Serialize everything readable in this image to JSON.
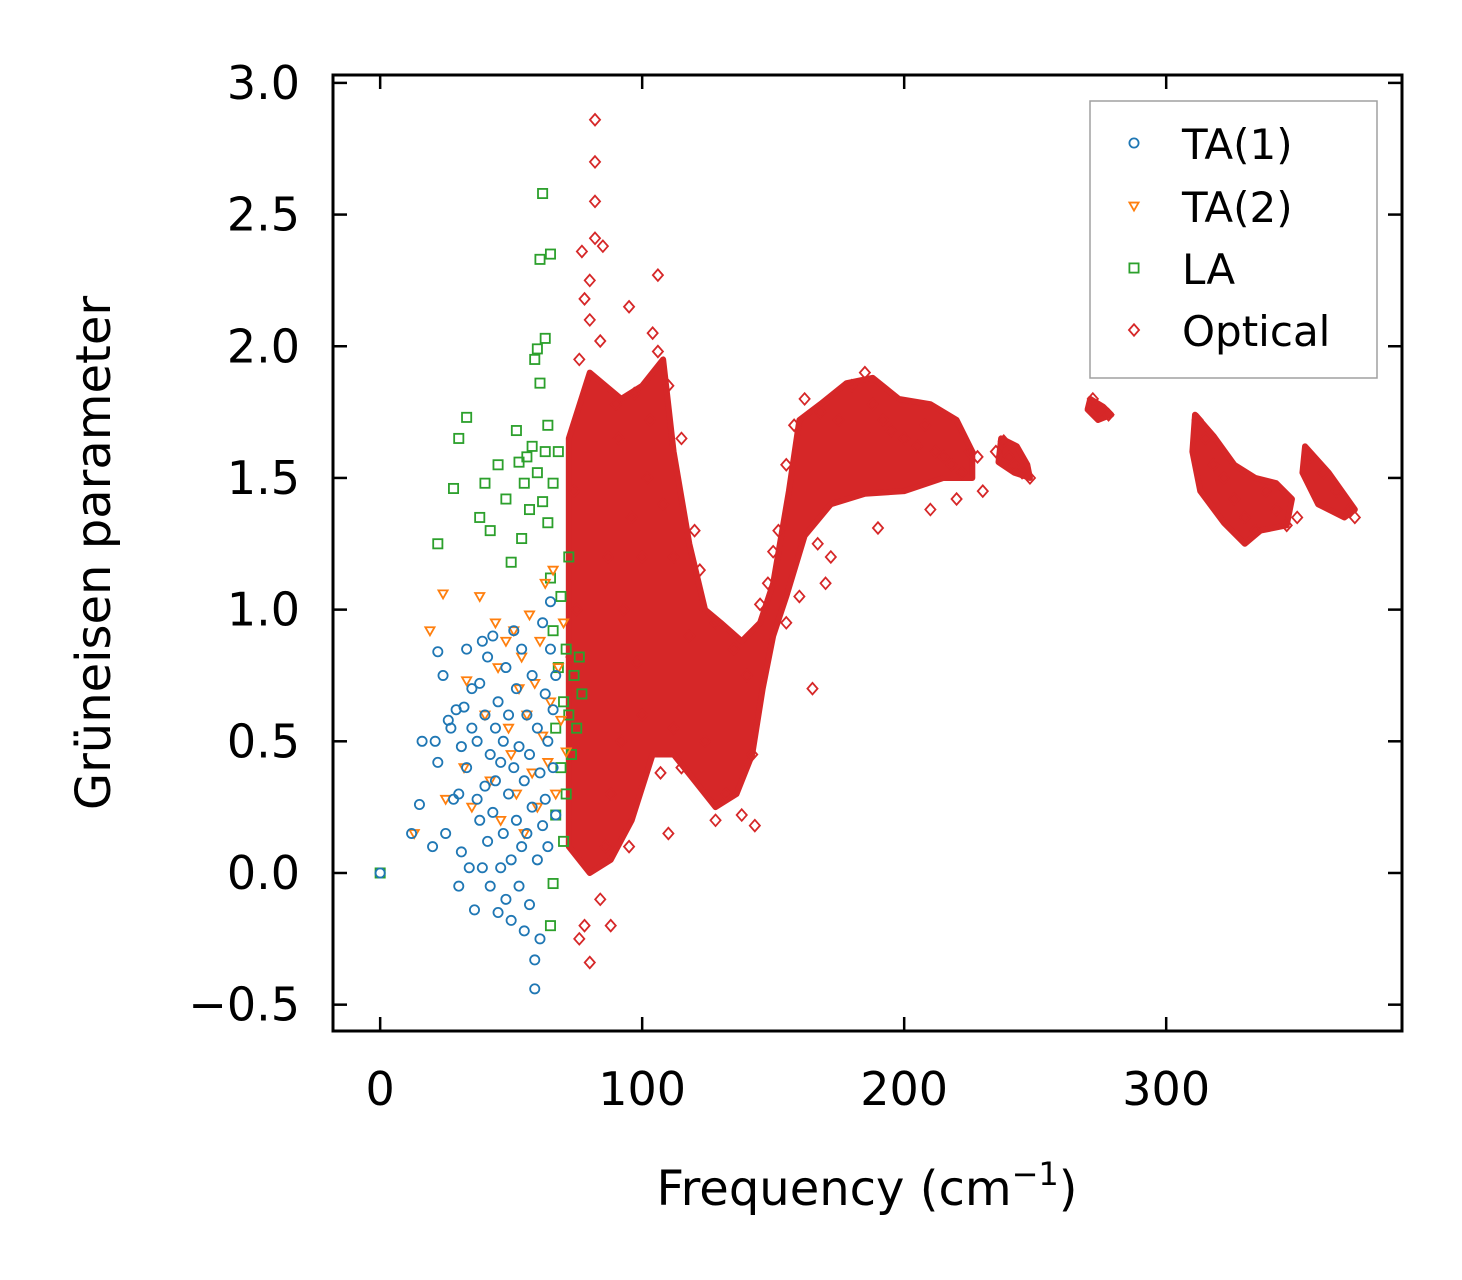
{
  "chart_data": {
    "type": "scatter",
    "title": "",
    "xlabel": "Frequency (cm",
    "xlabel_superscript": "−1",
    "xlabel_suffix": ")",
    "ylabel": "Grüneisen parameter",
    "xlim": [
      -18,
      390
    ],
    "ylim": [
      -0.6,
      3.03
    ],
    "x_ticks": [
      0,
      100,
      200,
      300
    ],
    "x_tick_labels": [
      "0",
      "100",
      "200",
      "300"
    ],
    "y_ticks": [
      -0.5,
      0.0,
      0.5,
      1.0,
      1.5,
      2.0,
      2.5,
      3.0
    ],
    "y_tick_labels": [
      "−0.5",
      "0.0",
      "0.5",
      "1.0",
      "1.5",
      "2.0",
      "2.5",
      "3.0"
    ],
    "grid": false,
    "legend_position": "top-right",
    "series": [
      {
        "name": "TA(1)",
        "marker": "circle",
        "color": "#1f77b4",
        "points": [
          [
            0,
            0
          ],
          [
            12,
            0.15
          ],
          [
            15,
            0.26
          ],
          [
            16,
            0.5
          ],
          [
            20,
            0.1
          ],
          [
            21,
            0.5
          ],
          [
            22,
            0.42
          ],
          [
            22,
            0.84
          ],
          [
            24,
            0.75
          ],
          [
            25,
            0.15
          ],
          [
            26,
            0.58
          ],
          [
            27,
            0.55
          ],
          [
            28,
            0.28
          ],
          [
            29,
            0.62
          ],
          [
            30,
            0.3
          ],
          [
            30,
            -0.05
          ],
          [
            31,
            0.48
          ],
          [
            31,
            0.08
          ],
          [
            32,
            0.63
          ],
          [
            33,
            0.4
          ],
          [
            33,
            0.85
          ],
          [
            34,
            0.02
          ],
          [
            35,
            0.7
          ],
          [
            35,
            0.55
          ],
          [
            36,
            -0.14
          ],
          [
            37,
            0.28
          ],
          [
            37,
            0.5
          ],
          [
            38,
            0.2
          ],
          [
            38,
            0.72
          ],
          [
            39,
            0.02
          ],
          [
            39,
            0.88
          ],
          [
            40,
            0.6
          ],
          [
            40,
            0.33
          ],
          [
            41,
            0.12
          ],
          [
            41,
            0.82
          ],
          [
            42,
            0.45
          ],
          [
            42,
            -0.05
          ],
          [
            43,
            0.23
          ],
          [
            43,
            0.9
          ],
          [
            44,
            0.35
          ],
          [
            44,
            0.55
          ],
          [
            45,
            -0.15
          ],
          [
            45,
            0.65
          ],
          [
            46,
            0.02
          ],
          [
            46,
            0.42
          ],
          [
            47,
            0.15
          ],
          [
            47,
            0.5
          ],
          [
            48,
            0.78
          ],
          [
            48,
            -0.1
          ],
          [
            49,
            0.3
          ],
          [
            49,
            0.6
          ],
          [
            50,
            0.05
          ],
          [
            50,
            -0.18
          ],
          [
            51,
            0.92
          ],
          [
            51,
            0.4
          ],
          [
            52,
            0.2
          ],
          [
            52,
            0.7
          ],
          [
            53,
            -0.05
          ],
          [
            53,
            0.48
          ],
          [
            54,
            0.1
          ],
          [
            54,
            0.85
          ],
          [
            55,
            -0.22
          ],
          [
            55,
            0.35
          ],
          [
            56,
            0.6
          ],
          [
            56,
            0.15
          ],
          [
            57,
            0.45
          ],
          [
            57,
            -0.12
          ],
          [
            58,
            0.25
          ],
          [
            58,
            0.75
          ],
          [
            59,
            -0.33
          ],
          [
            59,
            -0.44
          ],
          [
            60,
            0.05
          ],
          [
            60,
            0.55
          ],
          [
            61,
            0.38
          ],
          [
            61,
            -0.25
          ],
          [
            62,
            0.95
          ],
          [
            62,
            0.18
          ],
          [
            63,
            0.68
          ],
          [
            63,
            0.28
          ],
          [
            64,
            0.1
          ],
          [
            64,
            0.5
          ],
          [
            65,
            1.03
          ],
          [
            65,
            0.85
          ],
          [
            66,
            0.62
          ],
          [
            66,
            0.4
          ],
          [
            67,
            0.22
          ],
          [
            67,
            0.75
          ]
        ]
      },
      {
        "name": "TA(2)",
        "marker": "triangle-down",
        "color": "#ff7f0e",
        "points": [
          [
            13,
            0.15
          ],
          [
            19,
            0.92
          ],
          [
            24,
            1.06
          ],
          [
            25,
            0.28
          ],
          [
            32,
            0.4
          ],
          [
            33,
            0.73
          ],
          [
            35,
            0.25
          ],
          [
            38,
            1.05
          ],
          [
            40,
            0.6
          ],
          [
            42,
            0.35
          ],
          [
            44,
            0.95
          ],
          [
            45,
            0.78
          ],
          [
            46,
            0.2
          ],
          [
            48,
            0.88
          ],
          [
            49,
            0.55
          ],
          [
            50,
            0.45
          ],
          [
            51,
            0.92
          ],
          [
            52,
            0.3
          ],
          [
            53,
            0.7
          ],
          [
            54,
            0.82
          ],
          [
            55,
            0.15
          ],
          [
            56,
            0.6
          ],
          [
            57,
            0.98
          ],
          [
            58,
            0.38
          ],
          [
            59,
            0.72
          ],
          [
            60,
            0.25
          ],
          [
            61,
            0.88
          ],
          [
            62,
            0.52
          ],
          [
            63,
            1.1
          ],
          [
            64,
            0.42
          ],
          [
            65,
            0.65
          ],
          [
            66,
            1.15
          ],
          [
            67,
            0.3
          ],
          [
            68,
            0.78
          ],
          [
            69,
            0.58
          ],
          [
            70,
            0.95
          ],
          [
            71,
            0.46
          ]
        ]
      },
      {
        "name": "LA",
        "marker": "square",
        "color": "#2ca02c",
        "points": [
          [
            0,
            0
          ],
          [
            22,
            1.25
          ],
          [
            28,
            1.46
          ],
          [
            30,
            1.65
          ],
          [
            33,
            1.73
          ],
          [
            38,
            1.35
          ],
          [
            40,
            1.48
          ],
          [
            42,
            1.3
          ],
          [
            45,
            1.55
          ],
          [
            48,
            1.42
          ],
          [
            50,
            1.18
          ],
          [
            52,
            1.68
          ],
          [
            53,
            1.56
          ],
          [
            54,
            1.27
          ],
          [
            55,
            1.48
          ],
          [
            56,
            1.58
          ],
          [
            57,
            1.38
          ],
          [
            58,
            1.62
          ],
          [
            59,
            1.95
          ],
          [
            60,
            1.99
          ],
          [
            60,
            1.52
          ],
          [
            61,
            2.33
          ],
          [
            61,
            1.86
          ],
          [
            62,
            2.58
          ],
          [
            62,
            1.41
          ],
          [
            63,
            1.6
          ],
          [
            63,
            2.03
          ],
          [
            64,
            1.7
          ],
          [
            64,
            1.33
          ],
          [
            65,
            2.35
          ],
          [
            65,
            1.12
          ],
          [
            66,
            0.92
          ],
          [
            66,
            1.48
          ],
          [
            67,
            0.55
          ],
          [
            67,
            0.22
          ],
          [
            68,
            1.6
          ],
          [
            68,
            0.78
          ],
          [
            69,
            0.4
          ],
          [
            69,
            1.05
          ],
          [
            70,
            0.65
          ],
          [
            70,
            0.12
          ],
          [
            71,
            0.85
          ],
          [
            71,
            0.3
          ],
          [
            72,
            0.6
          ],
          [
            72,
            1.2
          ],
          [
            73,
            0.45
          ],
          [
            74,
            0.75
          ],
          [
            75,
            0.55
          ],
          [
            76,
            0.82
          ],
          [
            77,
            0.68
          ],
          [
            65,
            -0.2
          ],
          [
            66,
            -0.04
          ]
        ]
      },
      {
        "name": "Optical",
        "marker": "diamond",
        "color": "#d62728",
        "points": [
          [
            82,
            2.86
          ],
          [
            82,
            2.7
          ],
          [
            82,
            2.55
          ],
          [
            82,
            2.41
          ],
          [
            85,
            2.38
          ],
          [
            80,
            2.25
          ],
          [
            78,
            2.18
          ],
          [
            77,
            2.36
          ],
          [
            80,
            2.1
          ],
          [
            76,
            1.95
          ],
          [
            84,
            2.02
          ],
          [
            95,
            2.15
          ],
          [
            106,
            2.27
          ],
          [
            104,
            2.05
          ],
          [
            106,
            1.98
          ],
          [
            110,
            1.85
          ],
          [
            97,
            1.82
          ],
          [
            90,
            1.78
          ],
          [
            102,
            1.5
          ],
          [
            100,
            1.2
          ],
          [
            98,
            0.8
          ],
          [
            92,
            0.5
          ],
          [
            88,
            0.3
          ],
          [
            86,
            0.1
          ],
          [
            84,
            -0.1
          ],
          [
            78,
            -0.2
          ],
          [
            80,
            -0.34
          ],
          [
            76,
            -0.25
          ],
          [
            88,
            -0.2
          ],
          [
            95,
            0.1
          ],
          [
            110,
            0.15
          ],
          [
            115,
            0.4
          ],
          [
            118,
            0.9
          ],
          [
            122,
            1.15
          ],
          [
            128,
            0.95
          ],
          [
            135,
            0.85
          ],
          [
            140,
            0.75
          ],
          [
            142,
            0.45
          ],
          [
            145,
            1.02
          ],
          [
            148,
            1.1
          ],
          [
            150,
            1.22
          ],
          [
            152,
            1.3
          ],
          [
            155,
            1.55
          ],
          [
            158,
            1.7
          ],
          [
            162,
            1.8
          ],
          [
            168,
            1.75
          ],
          [
            175,
            1.72
          ],
          [
            180,
            1.85
          ],
          [
            185,
            1.9
          ],
          [
            188,
            1.78
          ],
          [
            192,
            1.72
          ],
          [
            195,
            1.68
          ],
          [
            200,
            1.65
          ],
          [
            205,
            1.62
          ],
          [
            208,
            1.7
          ],
          [
            212,
            1.6
          ],
          [
            215,
            1.58
          ],
          [
            218,
            1.55
          ],
          [
            222,
            1.52
          ],
          [
            225,
            1.6
          ],
          [
            228,
            1.58
          ],
          [
            235,
            1.6
          ],
          [
            238,
            1.64
          ],
          [
            240,
            1.58
          ],
          [
            242,
            1.55
          ],
          [
            245,
            1.52
          ],
          [
            248,
            1.5
          ],
          [
            272,
            1.8
          ],
          [
            275,
            1.76
          ],
          [
            278,
            1.74
          ],
          [
            312,
            1.72
          ],
          [
            315,
            1.65
          ],
          [
            318,
            1.55
          ],
          [
            322,
            1.5
          ],
          [
            326,
            1.42
          ],
          [
            330,
            1.35
          ],
          [
            334,
            1.3
          ],
          [
            338,
            1.45
          ],
          [
            342,
            1.38
          ],
          [
            346,
            1.32
          ],
          [
            350,
            1.35
          ],
          [
            355,
            1.58
          ],
          [
            360,
            1.52
          ],
          [
            365,
            1.45
          ],
          [
            370,
            1.38
          ],
          [
            372,
            1.35
          ],
          [
            190,
            1.31
          ],
          [
            210,
            1.38
          ],
          [
            220,
            1.42
          ],
          [
            230,
            1.45
          ],
          [
            167,
            1.25
          ],
          [
            172,
            1.2
          ],
          [
            160,
            1.05
          ],
          [
            155,
            0.95
          ],
          [
            165,
            0.7
          ],
          [
            170,
            1.1
          ],
          [
            128,
            0.2
          ],
          [
            132,
            0.3
          ],
          [
            138,
            0.22
          ],
          [
            143,
            0.18
          ],
          [
            112,
            0.55
          ],
          [
            107,
            0.38
          ],
          [
            115,
            1.65
          ],
          [
            120,
            1.3
          ],
          [
            100,
            0.6
          ],
          [
            93,
            1.0
          ],
          [
            87,
            1.2
          ],
          [
            73,
            0.82
          ],
          [
            75,
            1.0
          ],
          [
            74,
            1.45
          ],
          [
            91,
            1.65
          ],
          [
            96,
            1.35
          ],
          [
            103,
            1.72
          ],
          [
            108,
            1.4
          ],
          [
            112,
            1.2
          ],
          [
            124,
            0.5
          ]
        ]
      }
    ]
  }
}
